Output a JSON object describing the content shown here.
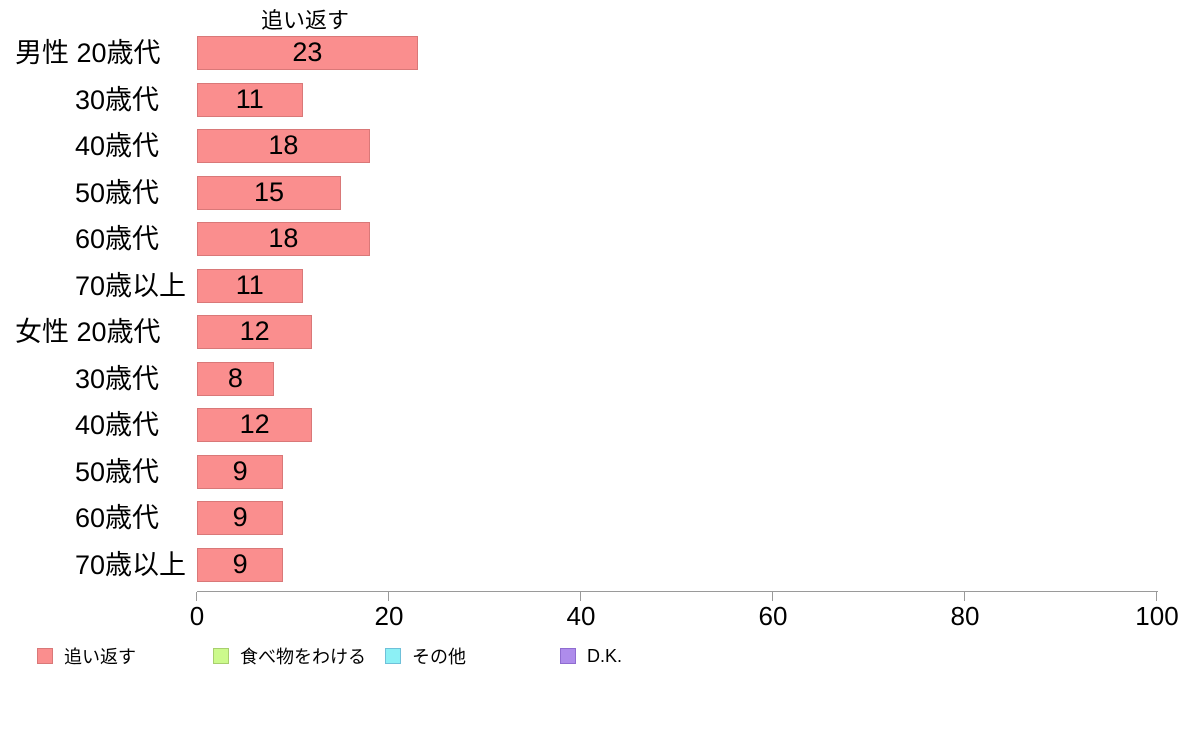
{
  "chart_data": {
    "type": "bar",
    "orientation": "horizontal",
    "title": "追い返す",
    "categories": [
      "男性 20歳代",
      "30歳代",
      "40歳代",
      "50歳代",
      "60歳代",
      "70歳以上",
      "女性 20歳代",
      "30歳代",
      "40歳代",
      "50歳代",
      "60歳代",
      "70歳以上"
    ],
    "values": [
      23,
      11,
      18,
      15,
      18,
      11,
      12,
      8,
      12,
      9,
      9,
      9
    ],
    "xlabel": "",
    "ylabel": "",
    "xlim": [
      0,
      100
    ],
    "x_ticks": [
      0,
      20,
      40,
      60,
      80,
      100
    ],
    "grid": false,
    "value_labels_shown": true,
    "bar_fill": "#fa8e8e",
    "bar_border": "#d97878",
    "axis_color": "#9a9a9a",
    "text_color": "#000000",
    "legend_position": "bottom",
    "legend": [
      {
        "label": "追い返す",
        "fill": "#fa8e8e",
        "border": "#d97878"
      },
      {
        "label": "食べ物をわける",
        "fill": "#ccfa8c",
        "border": "#a8cf6e"
      },
      {
        "label": "その他",
        "fill": "#8cf0f5",
        "border": "#6fc0d9"
      },
      {
        "label": "D.K.",
        "fill": "#ae8ceb",
        "border": "#8f6cd0"
      }
    ]
  }
}
